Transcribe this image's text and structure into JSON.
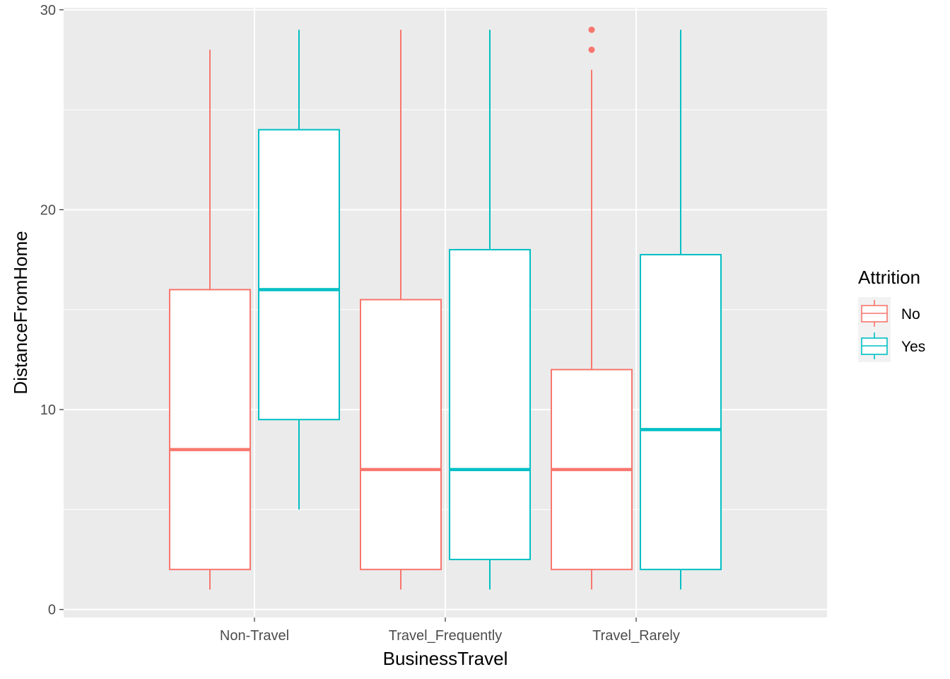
{
  "chart_data": {
    "type": "boxplot",
    "xlabel": "BusinessTravel",
    "ylabel": "DistanceFromHome",
    "categories": [
      "Non-Travel",
      "Travel_Frequently",
      "Travel_Rarely"
    ],
    "ylim": [
      -0.4,
      30.1
    ],
    "yticks": [
      0,
      10,
      20,
      30
    ],
    "grid": true,
    "legend": {
      "title": "Attrition",
      "position": "right"
    },
    "series": [
      {
        "name": "No",
        "color": "#F8766D",
        "boxes": [
          {
            "category": "Non-Travel",
            "whisker_low": 1,
            "q1": 2,
            "median": 8,
            "q3": 16,
            "whisker_high": 28,
            "outliers": []
          },
          {
            "category": "Travel_Frequently",
            "whisker_low": 1,
            "q1": 2,
            "median": 7,
            "q3": 15.5,
            "whisker_high": 29,
            "outliers": []
          },
          {
            "category": "Travel_Rarely",
            "whisker_low": 1,
            "q1": 2,
            "median": 7,
            "q3": 12,
            "whisker_high": 27,
            "outliers": [
              28,
              29
            ]
          }
        ]
      },
      {
        "name": "Yes",
        "color": "#00BFC4",
        "boxes": [
          {
            "category": "Non-Travel",
            "whisker_low": 5,
            "q1": 9.5,
            "median": 16,
            "q3": 24,
            "whisker_high": 29,
            "outliers": []
          },
          {
            "category": "Travel_Frequently",
            "whisker_low": 1,
            "q1": 2.5,
            "median": 7,
            "q3": 18,
            "whisker_high": 29,
            "outliers": []
          },
          {
            "category": "Travel_Rarely",
            "whisker_low": 1,
            "q1": 2,
            "median": 9,
            "q3": 17.75,
            "whisker_high": 29,
            "outliers": []
          }
        ]
      }
    ]
  },
  "colors": {
    "panel_background": "#EBEBEB",
    "grid_major": "#FFFFFF",
    "tick_text": "#4D4D4D",
    "tick_mark": "#333333"
  }
}
